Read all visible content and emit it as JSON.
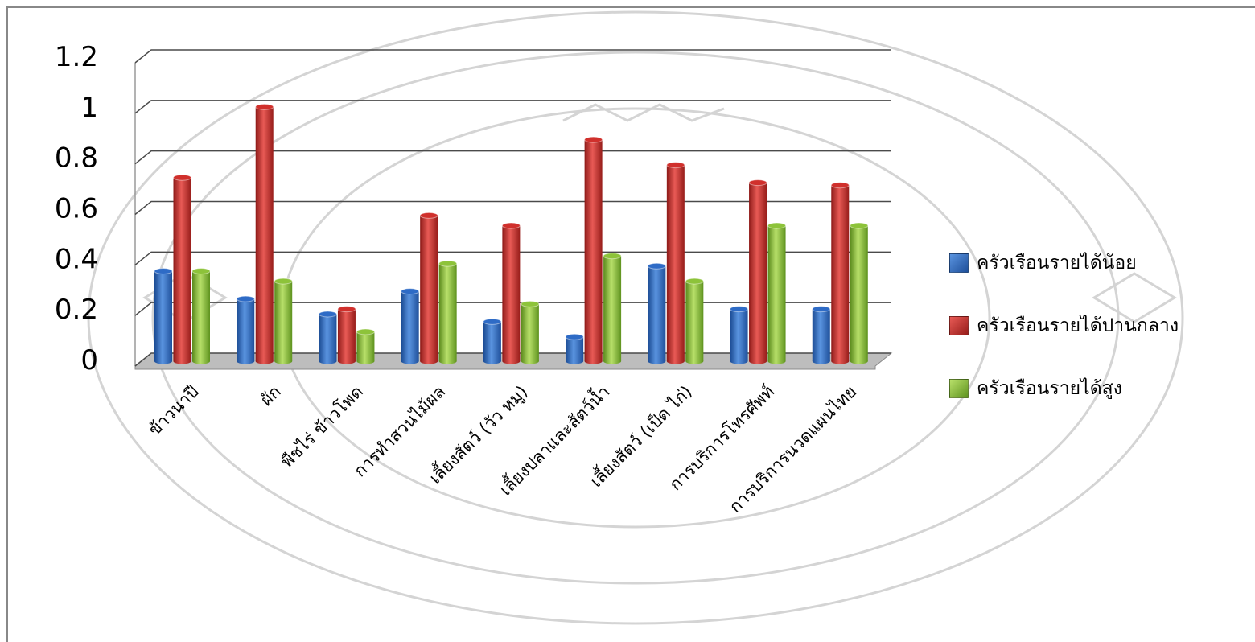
{
  "chart_data": {
    "type": "bar",
    "categories": [
      "ข้าวนาปี",
      "ผัก",
      "พืชไร่ ข้าวโพด",
      "การทำสวนไม้ผล",
      "เลี้ยงสัตว์ (วัว หมู)",
      "เลี้ยงปลาและสัตว์น้ำ",
      "เลี้ยงสัตว์ (เป็ด ไก่)",
      "การบริการโทรศัพท์",
      "การบริการนวดแผนไทย"
    ],
    "series": [
      {
        "name": "ครัวเรือนรายได้น้อย",
        "color": "#2E6BC6",
        "values": [
          0.35,
          0.24,
          0.18,
          0.27,
          0.15,
          0.09,
          0.37,
          0.2,
          0.2
        ]
      },
      {
        "name": "ครัวเรือนรายได้ปานกลาง",
        "color": "#D0302C",
        "values": [
          0.72,
          1.0,
          0.2,
          0.57,
          0.53,
          0.87,
          0.77,
          0.7,
          0.69
        ]
      },
      {
        "name": "ครัวเรือนรายได้สูง",
        "color": "#8DC33A",
        "values": [
          0.35,
          0.31,
          0.11,
          0.38,
          0.22,
          0.41,
          0.31,
          0.53,
          0.53
        ]
      }
    ],
    "yticks": [
      "0",
      "0.2",
      "0.4",
      "0.6",
      "0.8",
      "1",
      "1.2"
    ],
    "ylim": [
      0,
      1.2
    ],
    "grid": true,
    "legend_position": "right",
    "style": "3d-cylinder"
  }
}
